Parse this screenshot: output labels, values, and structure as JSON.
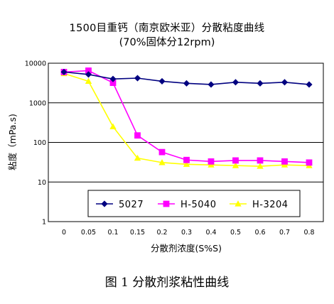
{
  "chart_data": {
    "type": "line",
    "title": "1500目重钙（南京欧米亚）分散粘度曲线",
    "subtitle": "(70%固体分12rpm)",
    "xlabel": "分散剂浓度(S%S)",
    "ylabel": "粘度（mPa.s)",
    "x": [
      "0",
      "0.05",
      "0.1",
      "0.15",
      "0.2",
      "0.3",
      "0.4",
      "0.5",
      "0.6",
      "0.7",
      "0.8"
    ],
    "yscale": "log",
    "ylim": [
      1,
      10000
    ],
    "yticks": [
      "1",
      "10",
      "100",
      "1000",
      "10000"
    ],
    "grid": true,
    "legend": "bottom-center",
    "series": [
      {
        "name": "5027",
        "color": "#000080",
        "marker": "diamond",
        "values": [
          6000,
          5200,
          4000,
          4200,
          3500,
          3100,
          2900,
          3300,
          3100,
          3300,
          2900
        ]
      },
      {
        "name": "H-5040",
        "color": "#ff00ff",
        "marker": "square",
        "values": [
          6000,
          6500,
          3200,
          150,
          57,
          36,
          33,
          35,
          35,
          33,
          31
        ]
      },
      {
        "name": "H-3204",
        "color": "#ffff00",
        "marker": "triangle",
        "values": [
          5500,
          3500,
          250,
          40,
          31,
          28,
          27,
          26,
          25,
          27,
          26
        ]
      }
    ]
  },
  "caption": "图 1  分散剂浆粘性曲线"
}
